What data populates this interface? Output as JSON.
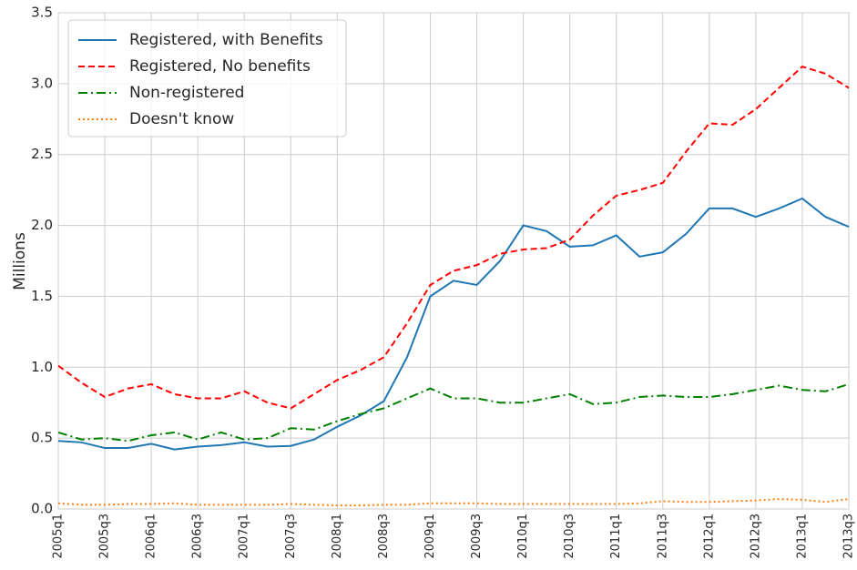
{
  "chart_data": {
    "type": "line",
    "y_label": "Millions",
    "categories": [
      "2005q1",
      null,
      "2005q3",
      null,
      "2006q1",
      null,
      "2006q3",
      null,
      "2007q1",
      null,
      "2007q3",
      null,
      "2008q1",
      null,
      "2008q3",
      null,
      "2009q1",
      null,
      "2009q3",
      null,
      "2010q1",
      null,
      "2010q3",
      null,
      "2011q1",
      null,
      "2011q3",
      null,
      "2012q1",
      null,
      "2012q3",
      null,
      "2013q1",
      null,
      "2013q3"
    ],
    "series": [
      {
        "name": "Registered, with Benefits",
        "color": "#1f77b4",
        "style": "solid",
        "values": [
          0.48,
          0.47,
          0.43,
          0.43,
          0.46,
          0.42,
          0.44,
          0.45,
          0.47,
          0.44,
          0.445,
          0.49,
          0.58,
          0.66,
          0.76,
          1.07,
          1.5,
          1.61,
          1.58,
          1.75,
          2.0,
          1.96,
          1.85,
          1.86,
          1.93,
          1.78,
          1.81,
          1.94,
          2.12,
          2.12,
          2.06,
          2.12,
          2.19,
          2.06,
          1.99
        ]
      },
      {
        "name": "Registered, No benefits",
        "color": "#ff0000",
        "style": "dashed",
        "values": [
          1.01,
          0.89,
          0.79,
          0.85,
          0.88,
          0.81,
          0.78,
          0.78,
          0.83,
          0.75,
          0.71,
          0.81,
          0.91,
          0.98,
          1.07,
          1.31,
          1.58,
          1.68,
          1.72,
          1.8,
          1.83,
          1.84,
          1.9,
          2.07,
          2.21,
          2.25,
          2.3,
          2.52,
          2.72,
          2.71,
          2.82,
          2.97,
          3.12,
          3.07,
          2.97
        ]
      },
      {
        "name": "Non-registered",
        "color": "#008000",
        "style": "dashdot",
        "values": [
          0.54,
          0.49,
          0.5,
          0.48,
          0.52,
          0.54,
          0.49,
          0.54,
          0.49,
          0.5,
          0.57,
          0.56,
          0.62,
          0.67,
          0.71,
          0.78,
          0.85,
          0.78,
          0.78,
          0.75,
          0.75,
          0.78,
          0.81,
          0.74,
          0.75,
          0.79,
          0.8,
          0.79,
          0.79,
          0.81,
          0.84,
          0.87,
          0.84,
          0.83,
          0.88
        ]
      },
      {
        "name": "Doesn't know",
        "color": "#ff7f0e",
        "style": "dotted",
        "values": [
          0.04,
          0.03,
          0.03,
          0.035,
          0.035,
          0.04,
          0.03,
          0.03,
          0.03,
          0.03,
          0.035,
          0.03,
          0.025,
          0.025,
          0.03,
          0.03,
          0.04,
          0.04,
          0.04,
          0.035,
          0.035,
          0.035,
          0.035,
          0.035,
          0.035,
          0.04,
          0.055,
          0.05,
          0.05,
          0.055,
          0.06,
          0.07,
          0.065,
          0.05,
          0.07
        ]
      }
    ],
    "ylim": [
      0,
      3.5
    ],
    "yticks": [
      {
        "value": 0,
        "label": "0.0"
      },
      0.5,
      {
        "value": 1,
        "label": "1.0"
      },
      1.5,
      {
        "value": 2,
        "label": "2.0"
      },
      2.5,
      {
        "value": 3,
        "label": "3.0"
      },
      3.5
    ],
    "grid": true,
    "legend": "upper-left"
  }
}
